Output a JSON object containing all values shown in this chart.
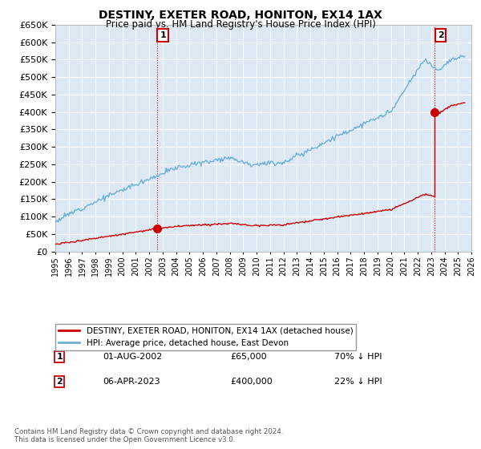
{
  "title": "DESTINY, EXETER ROAD, HONITON, EX14 1AX",
  "subtitle": "Price paid vs. HM Land Registry's House Price Index (HPI)",
  "legend_line1": "DESTINY, EXETER ROAD, HONITON, EX14 1AX (detached house)",
  "legend_line2": "HPI: Average price, detached house, East Devon",
  "transaction1_date": "01-AUG-2002",
  "transaction1_price": "£65,000",
  "transaction1_hpi": "70% ↓ HPI",
  "transaction2_date": "06-APR-2023",
  "transaction2_price": "£400,000",
  "transaction2_hpi": "22% ↓ HPI",
  "footnote": "Contains HM Land Registry data © Crown copyright and database right 2024.\nThis data is licensed under the Open Government Licence v3.0.",
  "hpi_color": "#6baed6",
  "price_color": "#cc0000",
  "marker1_x": 2002.58,
  "marker1_y": 65000,
  "marker2_x": 2023.27,
  "marker2_y": 400000,
  "vline1_x": 2002.58,
  "vline2_x": 2023.27,
  "xmin": 1995,
  "xmax": 2026,
  "ymin": 0,
  "ymax": 650000,
  "yticks": [
    0,
    50000,
    100000,
    150000,
    200000,
    250000,
    300000,
    350000,
    400000,
    450000,
    500000,
    550000,
    600000,
    650000
  ],
  "background_color": "#ffffff",
  "plot_bg_color": "#dce9f5"
}
